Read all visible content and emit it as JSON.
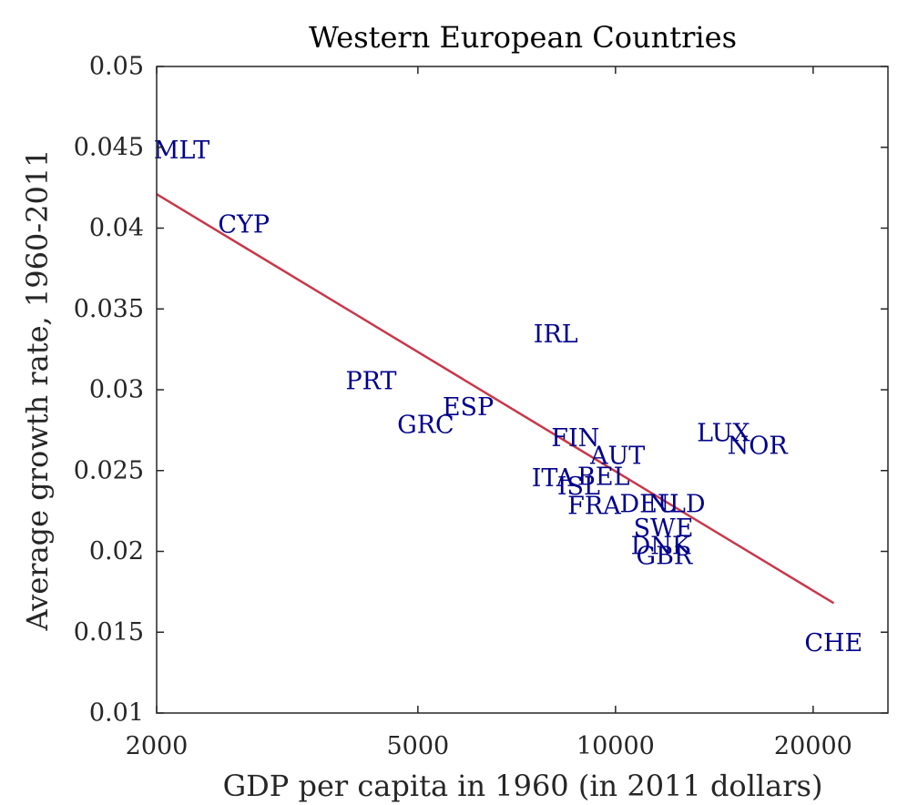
{
  "chart_data": {
    "type": "scatter",
    "title": "Western European Countries",
    "xlabel": "GDP per capita in 1960 (in 2011 dollars)",
    "ylabel": "Average growth rate, 1960-2011",
    "x_scale": "log",
    "xlim": [
      2000,
      26000
    ],
    "ylim": [
      0.01,
      0.05
    ],
    "x_ticks": [
      2000,
      5000,
      10000,
      20000
    ],
    "x_tick_labels": [
      "2000",
      "5000",
      "10000",
      "20000"
    ],
    "y_ticks": [
      0.01,
      0.015,
      0.02,
      0.025,
      0.03,
      0.035,
      0.04,
      0.045,
      0.05
    ],
    "y_tick_labels": [
      "0.01",
      "0.015",
      "0.02",
      "0.025",
      "0.03",
      "0.035",
      "0.04",
      "0.045",
      "0.05"
    ],
    "grid": false,
    "points": [
      {
        "label": "MLT",
        "x": 1980,
        "y": 0.0448
      },
      {
        "label": "CYP",
        "x": 2480,
        "y": 0.0402
      },
      {
        "label": "IRL",
        "x": 7500,
        "y": 0.0334
      },
      {
        "label": "PRT",
        "x": 3880,
        "y": 0.0305
      },
      {
        "label": "ESP",
        "x": 5450,
        "y": 0.0289
      },
      {
        "label": "GRC",
        "x": 4650,
        "y": 0.0278
      },
      {
        "label": "FIN",
        "x": 7980,
        "y": 0.027
      },
      {
        "label": "AUT",
        "x": 9150,
        "y": 0.0259
      },
      {
        "label": "LUX",
        "x": 13300,
        "y": 0.0273
      },
      {
        "label": "NOR",
        "x": 14800,
        "y": 0.0265
      },
      {
        "label": "ITA",
        "x": 7450,
        "y": 0.0245
      },
      {
        "label": "ISL",
        "x": 8150,
        "y": 0.024
      },
      {
        "label": "BEL",
        "x": 8750,
        "y": 0.0246
      },
      {
        "label": "FRA",
        "x": 8450,
        "y": 0.0228
      },
      {
        "label": "DEU",
        "x": 10150,
        "y": 0.0229
      },
      {
        "label": "NLD",
        "x": 11200,
        "y": 0.0229
      },
      {
        "label": "SWE",
        "x": 10650,
        "y": 0.0214
      },
      {
        "label": "DNK",
        "x": 10550,
        "y": 0.0203
      },
      {
        "label": "GBR",
        "x": 10750,
        "y": 0.0197
      },
      {
        "label": "CHE",
        "x": 19400,
        "y": 0.0143
      }
    ],
    "fit_line": {
      "x": [
        2000,
        21500
      ],
      "y": [
        0.0421,
        0.0168
      ]
    },
    "colors": {
      "points": "#00008b",
      "fit_line": "#c8384a",
      "axes": "#262626"
    }
  }
}
